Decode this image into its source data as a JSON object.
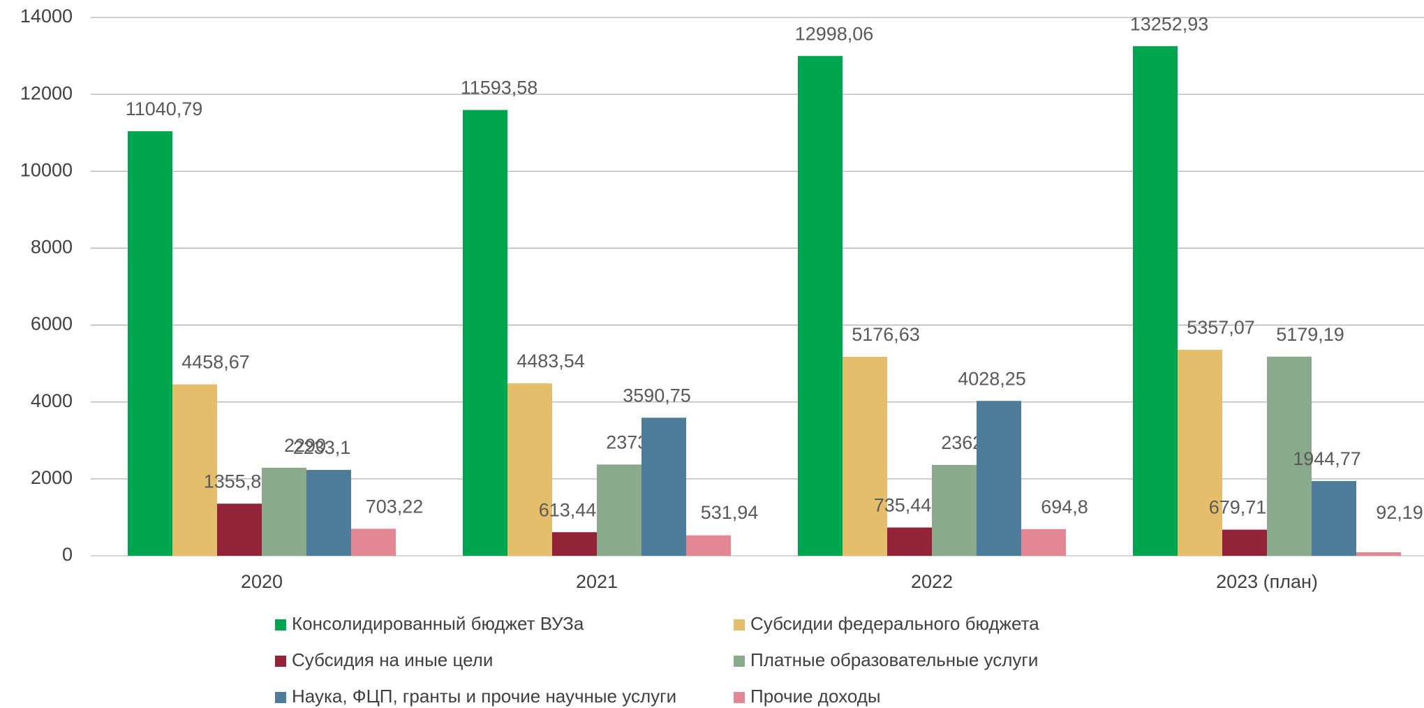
{
  "chart_data": {
    "type": "bar",
    "categories": [
      "2020",
      "2021",
      "2022",
      "2023 (план)"
    ],
    "series": [
      {
        "name": "Консолидированный бюджет ВУЗа",
        "color": "#00a550",
        "values": [
          11040.79,
          11593.58,
          12998.06,
          13252.93
        ],
        "value_labels": [
          "11040,79",
          "11593,58",
          "12998,06",
          "13252,93"
        ]
      },
      {
        "name": "Субсидии федерального бюджета",
        "color": "#e4be6a",
        "values": [
          4458.67,
          4483.54,
          5176.63,
          5357.07
        ],
        "value_labels": [
          "4458,67",
          "4483,54",
          "5176,63",
          "5357,07"
        ]
      },
      {
        "name": "Субсидия на иные цели",
        "color": "#922338",
        "values": [
          1355.8,
          613.44,
          735.44,
          679.71
        ],
        "value_labels": [
          "1355,8",
          "613,44",
          "735,44",
          "679,71"
        ]
      },
      {
        "name": "Платные образовательные услуги",
        "color": "#8aab8b",
        "values": [
          2290,
          2373.91,
          2362.95,
          5179.19
        ],
        "value_labels": [
          "2290",
          "2373,91",
          "2362,95",
          "5179,19"
        ]
      },
      {
        "name": "Наука, ФЦП, гранты и прочие научные услуги",
        "color": "#4e7d9b",
        "values": [
          2233.1,
          3590.75,
          4028.25,
          1944.77
        ],
        "value_labels": [
          "2233,1",
          "3590,75",
          "4028,25",
          "1944,77"
        ]
      },
      {
        "name": "Прочие доходы",
        "color": "#e48795",
        "values": [
          703.22,
          531.94,
          694.8,
          92.19
        ],
        "value_labels": [
          "703,22",
          "531,94",
          "694,8",
          "92,19"
        ]
      }
    ],
    "ylim": [
      0,
      14000
    ],
    "yticks": [
      0,
      2000,
      4000,
      6000,
      8000,
      10000,
      12000,
      14000
    ],
    "grid": true,
    "legend": "bottom"
  }
}
